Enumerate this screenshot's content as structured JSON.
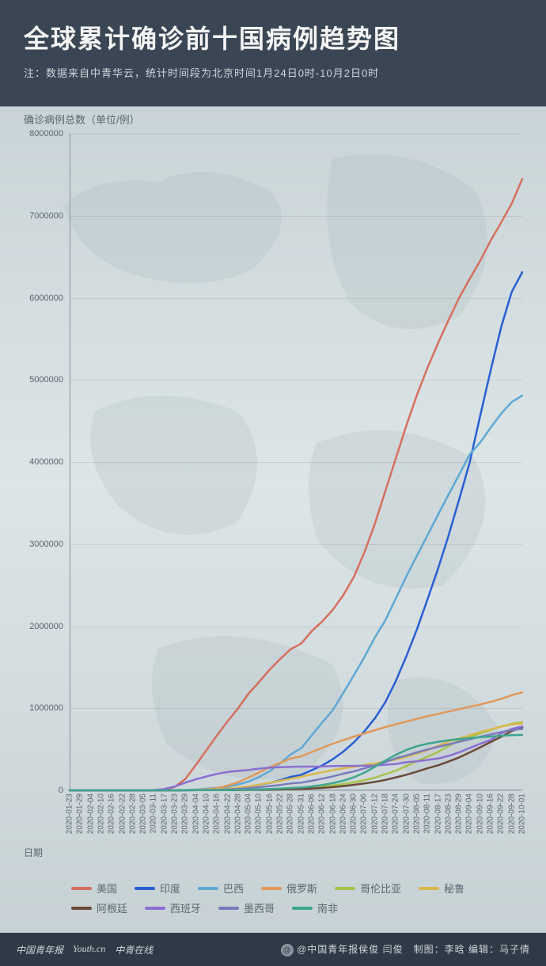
{
  "header": {
    "title": "全球累计确诊前十国病例趋势图",
    "subtitle": "注：数据来自中青华云，统计时间段为北京时间1月24日0时-10月2日0时"
  },
  "chart": {
    "type": "line",
    "y_title": "确诊病例总数（单位/例）",
    "x_title": "日期",
    "ylim": [
      0,
      8000000
    ],
    "y_ticks": [
      0,
      1000000,
      2000000,
      3000000,
      4000000,
      5000000,
      6000000,
      7000000,
      8000000
    ],
    "x_labels": [
      "2020-01-23",
      "2020-01-29",
      "2020-02-04",
      "2020-02-10",
      "2020-02-16",
      "2020-02-22",
      "2020-02-28",
      "2020-03-05",
      "2020-03-11",
      "2020-03-17",
      "2020-03-23",
      "2020-03-29",
      "2020-04-04",
      "2020-04-10",
      "2020-04-16",
      "2020-04-22",
      "2020-04-28",
      "2020-05-04",
      "2020-05-10",
      "2020-05-16",
      "2020-05-22",
      "2020-05-28",
      "2020-05-31",
      "2020-06-06",
      "2020-06-12",
      "2020-06-18",
      "2020-06-24",
      "2020-06-30",
      "2020-07-06",
      "2020-07-12",
      "2020-07-18",
      "2020-07-24",
      "2020-07-30",
      "2020-08-05",
      "2020-08-11",
      "2020-08-17",
      "2020-08-23",
      "2020-08-29",
      "2020-09-04",
      "2020-09-10",
      "2020-09-16",
      "2020-09-22",
      "2020-09-28",
      "2020-10-01"
    ],
    "background_color": "transparent",
    "grid_color": "rgba(90,101,112,0.15)",
    "axis_color": "#8a949e",
    "line_width": 2.5,
    "series": [
      {
        "name": "美国",
        "color": "#d57060",
        "values": [
          0,
          0,
          0,
          0,
          0,
          0,
          0,
          200,
          1600,
          6400,
          43800,
          140000,
          310000,
          490000,
          670000,
          840000,
          1000000,
          1180000,
          1320000,
          1470000,
          1600000,
          1720000,
          1790000,
          1940000,
          2060000,
          2200000,
          2380000,
          2600000,
          2900000,
          3250000,
          3650000,
          4050000,
          4450000,
          4820000,
          5150000,
          5450000,
          5730000,
          6000000,
          6230000,
          6450000,
          6700000,
          6920000,
          7150000,
          7450000
        ]
      },
      {
        "name": "印度",
        "color": "#2a5fd4",
        "values": [
          0,
          0,
          0,
          0,
          0,
          0,
          0,
          0,
          50,
          140,
          500,
          1000,
          3000,
          7000,
          13000,
          21000,
          31000,
          46000,
          67000,
          90000,
          124000,
          165000,
          190000,
          246000,
          305000,
          380000,
          472000,
          585000,
          720000,
          878000,
          1077000,
          1337000,
          1638000,
          1964000,
          2329000,
          2702000,
          3106000,
          3542000,
          3992000,
          4562000,
          5118000,
          5646000,
          6074000,
          6312000
        ]
      },
      {
        "name": "巴西",
        "color": "#5fa8d4",
        "values": [
          0,
          0,
          0,
          0,
          0,
          0,
          0,
          0,
          0,
          300,
          1900,
          4600,
          10500,
          20000,
          31000,
          46000,
          72000,
          108000,
          162000,
          233000,
          330000,
          438000,
          514000,
          672000,
          828000,
          978000,
          1188000,
          1402000,
          1623000,
          1864000,
          2074000,
          2343000,
          2610000,
          2860000,
          3109000,
          3359000,
          3605000,
          3846000,
          4092000,
          4238000,
          4419000,
          4591000,
          4732000,
          4810000
        ]
      },
      {
        "name": "俄罗斯",
        "color": "#e0995c",
        "values": [
          0,
          0,
          0,
          0,
          0,
          0,
          0,
          0,
          0,
          100,
          500,
          1800,
          4700,
          13000,
          28000,
          58000,
          99000,
          155000,
          220000,
          281000,
          335000,
          387000,
          414000,
          467000,
          520000,
          569000,
          613000,
          654000,
          694000,
          733000,
          771000,
          806000,
          839000,
          872000,
          903000,
          932000,
          961000,
          990000,
          1018000,
          1046000,
          1079000,
          1115000,
          1159000,
          1194000
        ]
      },
      {
        "name": "哥伦比亚",
        "color": "#a8c24a",
        "values": [
          0,
          0,
          0,
          0,
          0,
          0,
          0,
          0,
          0,
          0,
          200,
          700,
          1500,
          2700,
          3400,
          4400,
          5900,
          7900,
          11600,
          15500,
          20200,
          25400,
          29400,
          38000,
          46900,
          60200,
          77100,
          97800,
          124500,
          154300,
          197300,
          240800,
          295500,
          357700,
          410500,
          468300,
          541100,
          607900,
          650100,
          694700,
          736400,
          777500,
          813000,
          829700
        ]
      },
      {
        "name": "秘鲁",
        "color": "#d9b94e",
        "values": [
          0,
          0,
          0,
          0,
          0,
          0,
          0,
          0,
          0,
          100,
          400,
          1000,
          2500,
          6800,
          12500,
          20000,
          33900,
          47400,
          68800,
          92300,
          115800,
          141800,
          164500,
          196500,
          220700,
          247900,
          268600,
          285200,
          309300,
          330100,
          353600,
          375900,
          407500,
          447600,
          489700,
          541500,
          594300,
          629900,
          670100,
          710100,
          744400,
          776500,
          805300,
          814800
        ]
      },
      {
        "name": "阿根廷",
        "color": "#6a4a3a",
        "values": [
          0,
          0,
          0,
          0,
          0,
          0,
          0,
          0,
          0,
          80,
          300,
          800,
          1500,
          2100,
          2700,
          3400,
          4100,
          5000,
          6300,
          8100,
          10600,
          14700,
          16900,
          22800,
          29900,
          39600,
          52500,
          67200,
          83400,
          103300,
          126800,
          158300,
          191300,
          228200,
          268600,
          305900,
          350900,
          401200,
          461900,
          524200,
          589000,
          652200,
          723100,
          765000
        ]
      },
      {
        "name": "西班牙",
        "color": "#8a6fd0",
        "values": [
          0,
          0,
          0,
          0,
          0,
          0,
          0,
          200,
          2300,
          17100,
          47600,
          94400,
          135000,
          169600,
          200200,
          223800,
          236900,
          248300,
          264700,
          276500,
          282500,
          286300,
          289000,
          288800,
          292300,
          295500,
          297600,
          299200,
          300100,
          303000,
          311900,
          322000,
          342800,
          352800,
          370800,
          387900,
          419800,
          462900,
          517100,
          566300,
          614400,
          693600,
          748300,
          778600
        ]
      },
      {
        "name": "墨西哥",
        "color": "#7a7bbd",
        "values": [
          0,
          0,
          0,
          0,
          0,
          0,
          0,
          0,
          0,
          100,
          400,
          1200,
          2000,
          3800,
          6900,
          10500,
          16800,
          26000,
          38300,
          51600,
          65900,
          84600,
          93400,
          117100,
          142700,
          170500,
          202900,
          231800,
          268000,
          304400,
          344200,
          390500,
          424600,
          462700,
          498400,
          531200,
          560200,
          591700,
          623000,
          652400,
          680900,
          710000,
          733700,
          748300
        ]
      },
      {
        "name": "南非",
        "color": "#3ea590",
        "values": [
          0,
          0,
          0,
          0,
          0,
          0,
          0,
          0,
          0,
          100,
          400,
          1300,
          1700,
          2200,
          2800,
          3900,
          5400,
          7800,
          11400,
          15500,
          21300,
          29200,
          34400,
          48300,
          65700,
          87700,
          118400,
          159300,
          215900,
          287800,
          364300,
          434200,
          493200,
          538200,
          568900,
          592100,
          611500,
          625100,
          636900,
          646400,
          655600,
          665200,
          672600,
          676100
        ]
      }
    ]
  },
  "legend": {
    "items": [
      "美国",
      "印度",
      "巴西",
      "俄罗斯",
      "哥伦比亚",
      "秘鲁",
      "阿根廷",
      "西班牙",
      "墨西哥",
      "南非"
    ]
  },
  "footer": {
    "logos": [
      "中国青年报",
      "Youth.cn",
      "中青在线"
    ],
    "handle": "@中国青年报侯俊 闫俊",
    "credits": "制图：李晗 编辑：马子倩"
  }
}
